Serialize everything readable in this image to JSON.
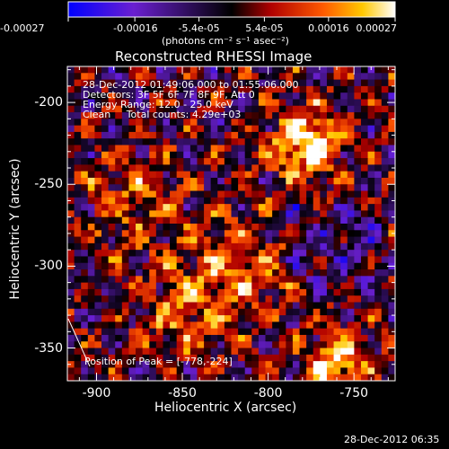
{
  "colorbar": {
    "tick_labels": [
      "-0.00027",
      "-0.00016",
      "-5.4e-05",
      "5.4e-05",
      "0.00016",
      "0.00027"
    ],
    "tick_values": [
      -0.00027,
      -0.00016,
      -5.4e-05,
      5.4e-05,
      0.00016,
      0.00027
    ],
    "range": [
      -0.00027,
      0.00027
    ],
    "unit_label": "(photons cm⁻² s⁻¹ asec⁻²)",
    "colors": [
      "#0000ff",
      "#7a1fd0",
      "#000000",
      "#b00000",
      "#ff6000",
      "#ffd000",
      "#ffffff"
    ]
  },
  "chart_data": {
    "type": "heatmap",
    "title": "Reconstructed RHESSI Image",
    "xlabel": "Heliocentric X (arcsec)",
    "ylabel": "Heliocentric Y (arcsec)",
    "xlim": [
      -917,
      -726
    ],
    "ylim": [
      -370,
      -178
    ],
    "x_ticks": [
      -900,
      -850,
      -800,
      -750
    ],
    "y_ticks": [
      -350,
      -300,
      -250,
      -200
    ],
    "x_tick_labels": [
      "-900",
      "-850",
      "-800",
      "-750"
    ],
    "y_tick_labels": [
      "-350",
      "-300",
      "-250",
      "-200"
    ],
    "peak": {
      "x": -778,
      "y": -224
    },
    "annotations": [
      "28-Dec-2012 01:49:06.000 to 01:55:06.000",
      "Detectors: 3F 5F 6F 7F 8F 9F, Att 0",
      "Energy Range: 12.0 - 25.0 keV",
      "Clean     Total counts: 4.29e+03",
      "Position of Peak = [-778,-224]"
    ]
  },
  "footer": {
    "timestamp": "28-Dec-2012 06:35"
  }
}
